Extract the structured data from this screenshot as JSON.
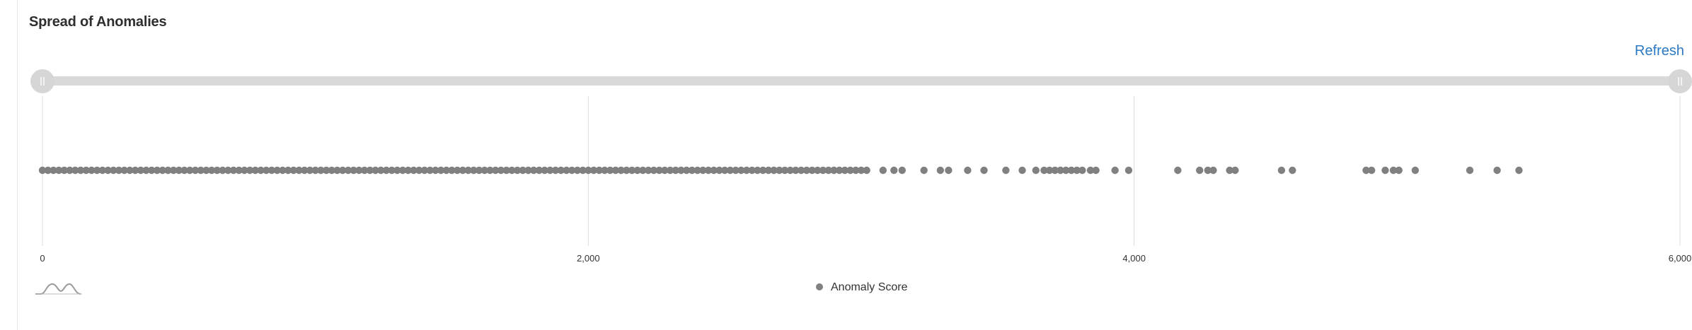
{
  "panel": {
    "title": "Spread of Anomalies",
    "refresh_label": "Refresh"
  },
  "slider": {
    "range": [
      0,
      6000
    ]
  },
  "colors": {
    "point": "#808080",
    "grid": "#dcdcdc",
    "axis_text": "#333333",
    "track": "#d9d9d9",
    "link": "#2b79c2"
  },
  "icons": {
    "toggle": "distribution-curve-icon"
  },
  "chart_data": {
    "type": "scatter",
    "title": "Spread of Anomalies",
    "xlabel": "",
    "ylabel": "",
    "xlim": [
      0,
      6000
    ],
    "x_ticks": [
      0,
      2000,
      4000,
      6000
    ],
    "x_tick_labels": [
      "0",
      "2,000",
      "4,000",
      "6,000"
    ],
    "grid": true,
    "legend": {
      "position": "bottom-center",
      "entries": [
        "Anomaly Score"
      ]
    },
    "series": [
      {
        "name": "Anomaly Score",
        "dense_run": {
          "from": 0,
          "to": 3030,
          "step": 20
        },
        "x": [
          3080,
          3120,
          3150,
          3230,
          3290,
          3320,
          3390,
          3450,
          3530,
          3590,
          3640,
          3670,
          3690,
          3710,
          3730,
          3750,
          3770,
          3790,
          3810,
          3840,
          3860,
          3930,
          3980,
          4160,
          4240,
          4270,
          4290,
          4350,
          4370,
          4540,
          4580,
          4850,
          4870,
          4920,
          4950,
          4970,
          5030,
          5230,
          5330,
          5410
        ]
      }
    ]
  }
}
